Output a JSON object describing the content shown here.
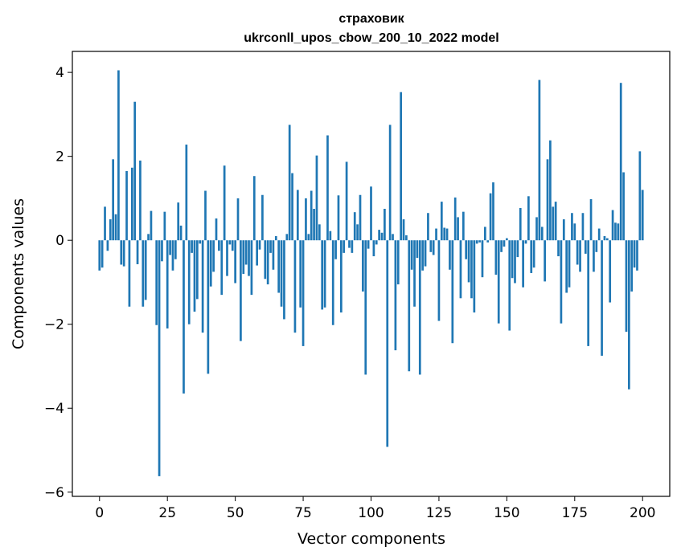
{
  "chart_data": {
    "type": "bar",
    "title_line1": "страховик",
    "title_line2": "ukrconll_upos_cbow_200_10_2022 model",
    "xlabel": "Vector components",
    "ylabel": "Components values",
    "xlim": [
      -10,
      210
    ],
    "ylim": [
      -6.1,
      4.5
    ],
    "x_ticks": [
      0,
      25,
      50,
      75,
      100,
      125,
      150,
      175,
      200
    ],
    "y_ticks": [
      -6,
      -4,
      -2,
      0,
      2,
      4
    ],
    "x_tick_labels": [
      "0",
      "25",
      "50",
      "75",
      "100",
      "125",
      "150",
      "175",
      "200"
    ],
    "y_tick_labels": [
      "−6",
      "−4",
      "−2",
      "0",
      "2",
      "4"
    ],
    "bar_color": "#1f77b4",
    "grid": false,
    "values": [
      -0.72,
      -0.65,
      0.8,
      -0.25,
      0.5,
      1.93,
      0.62,
      4.05,
      -0.58,
      -0.62,
      1.65,
      -1.58,
      1.73,
      3.3,
      -0.57,
      1.9,
      -1.58,
      -1.42,
      0.15,
      0.7,
      0.0,
      -2.02,
      -5.62,
      -0.5,
      0.68,
      -2.1,
      -0.35,
      -0.72,
      -0.45,
      0.9,
      0.35,
      -3.65,
      2.28,
      -2.0,
      -0.3,
      -1.7,
      -1.4,
      -0.08,
      -2.2,
      1.18,
      -3.18,
      -1.1,
      -0.75,
      0.52,
      -0.25,
      -1.3,
      1.78,
      -0.85,
      -0.1,
      -0.25,
      -1.02,
      1.0,
      -2.4,
      -0.8,
      -0.58,
      -0.85,
      -1.3,
      1.53,
      -0.6,
      -0.22,
      1.08,
      -0.92,
      -1.05,
      -0.3,
      -0.7,
      0.1,
      -1.25,
      -1.58,
      -1.88,
      0.15,
      2.75,
      1.6,
      -2.2,
      1.2,
      -1.6,
      -2.52,
      1.0,
      0.15,
      1.18,
      0.75,
      2.02,
      0.38,
      -1.65,
      -1.6,
      2.5,
      0.22,
      -2.02,
      -0.45,
      1.07,
      -1.72,
      -0.3,
      1.87,
      -0.18,
      -0.3,
      0.67,
      0.38,
      1.08,
      -1.22,
      -3.2,
      -0.2,
      1.28,
      -0.38,
      -0.1,
      0.25,
      0.18,
      0.75,
      -4.92,
      2.75,
      0.15,
      -2.62,
      -1.05,
      3.53,
      0.5,
      0.12,
      -3.12,
      -0.7,
      -1.58,
      -0.42,
      -3.2,
      -0.72,
      -0.62,
      0.65,
      -0.28,
      -0.35,
      0.28,
      -1.92,
      0.92,
      0.3,
      0.28,
      -0.7,
      -2.45,
      1.02,
      0.55,
      -1.38,
      0.68,
      -0.45,
      -1.0,
      -1.38,
      -1.72,
      -0.08,
      -0.05,
      -0.88,
      0.32,
      -0.05,
      1.12,
      1.38,
      -0.82,
      -1.98,
      -0.28,
      -0.15,
      0.05,
      -2.15,
      -0.9,
      -1.02,
      -0.4,
      0.77,
      -1.12,
      -0.08,
      1.05,
      -0.78,
      -0.65,
      0.55,
      3.82,
      0.32,
      -0.98,
      1.93,
      2.38,
      0.8,
      0.92,
      -0.38,
      -1.98,
      0.5,
      -1.25,
      -1.12,
      0.65,
      0.4,
      -0.58,
      -0.75,
      0.65,
      -0.32,
      -2.52,
      0.98,
      -0.75,
      -0.28,
      0.28,
      -2.75,
      0.1,
      0.05,
      -1.48,
      0.72,
      0.42,
      0.4,
      3.75,
      1.62,
      -2.18,
      -3.55,
      -1.22,
      -0.65,
      -0.72,
      2.12,
      1.2
    ]
  }
}
